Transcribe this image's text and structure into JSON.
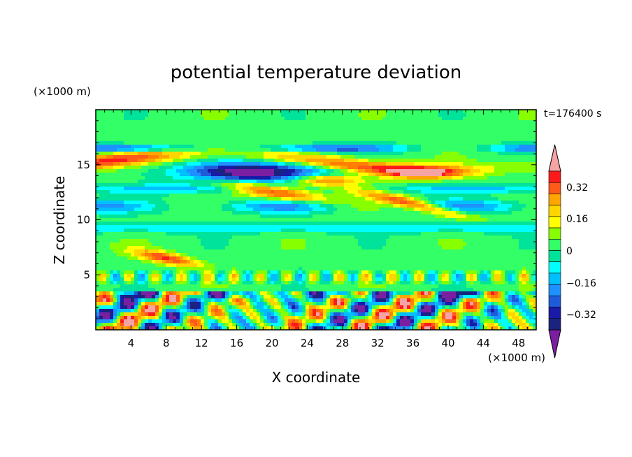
{
  "chart_data": {
    "type": "heatmap",
    "title": "potential temperature deviation",
    "time_label": "t=176400 s",
    "xlabel": "X coordinate",
    "ylabel": "Z coordinate",
    "x_unit": "(×1000 m)",
    "z_unit": "(×1000 m)",
    "xlim": [
      0,
      50
    ],
    "zlim": [
      0,
      20
    ],
    "x_ticks": [
      "4",
      "8",
      "12",
      "16",
      "20",
      "24",
      "28",
      "32",
      "36",
      "40",
      "44",
      "48"
    ],
    "z_ticks": [
      "5",
      "10",
      "15"
    ],
    "colorbar": {
      "labels": [
        "0.32",
        "0.16",
        "0",
        "−0.16",
        "−0.32"
      ],
      "levels": [
        -0.4,
        -0.36,
        -0.32,
        -0.28,
        -0.24,
        -0.2,
        -0.16,
        -0.12,
        -0.08,
        -0.04,
        0,
        0.04,
        0.08,
        0.12,
        0.16,
        0.2,
        0.24,
        0.28,
        0.32,
        0.36,
        0.4
      ],
      "colors": [
        "#7b1fa2",
        "#1a237e",
        "#1a1aa8",
        "#1e5bd8",
        "#1e90ff",
        "#00bfff",
        "#00ffff",
        "#00e39a",
        "#33ff66",
        "#88ff00",
        "#ffff00",
        "#ffd500",
        "#ffa500",
        "#ff7f00",
        "#ff5a1a",
        "#ff1a1a",
        "#f5a3a3"
      ],
      "extend": "both"
    },
    "bands": [
      {
        "z": [
          0.0,
          3.5
        ],
        "description_level": "mixed"
      },
      {
        "z": [
          9.0,
          12.0
        ],
        "description_level": "negative"
      },
      {
        "z": [
          13.0,
          15.5
        ],
        "description_level": "strong-negative"
      },
      {
        "z": [
          15.0,
          17.5
        ],
        "description_level": "positive"
      }
    ]
  }
}
